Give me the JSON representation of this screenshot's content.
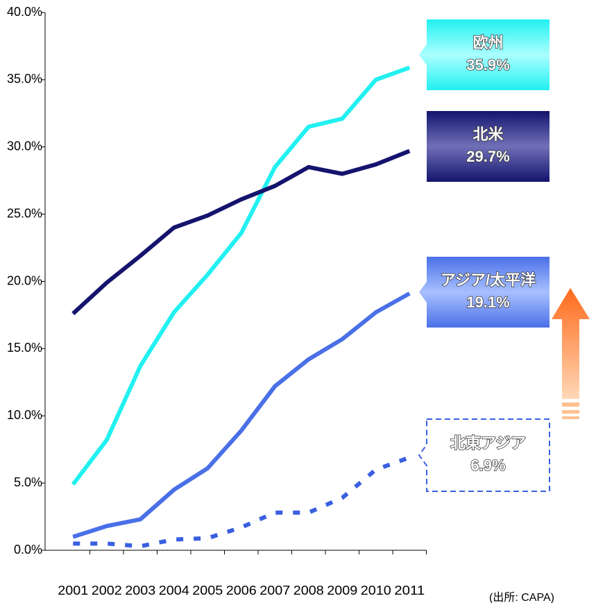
{
  "chart_data": {
    "type": "line",
    "categories": [
      "2001",
      "2002",
      "2003",
      "2004",
      "2005",
      "2006",
      "2007",
      "2008",
      "2009",
      "2010",
      "2011"
    ],
    "series": [
      {
        "name": "欧州",
        "color": "#22f0f0",
        "line_style": "solid",
        "values": [
          4.9,
          8.2,
          13.7,
          17.7,
          20.5,
          23.6,
          28.5,
          31.5,
          32.1,
          35.0,
          35.9
        ],
        "value_labels": [
          null,
          null,
          null,
          null,
          null,
          null,
          null,
          null,
          null,
          null,
          "35.9%"
        ]
      },
      {
        "name": "北米",
        "color": "#14146e",
        "line_style": "solid",
        "values": [
          17.6,
          19.9,
          21.9,
          24.0,
          24.9,
          26.1,
          27.1,
          28.5,
          28.0,
          28.7,
          29.7
        ],
        "value_labels": [
          null,
          null,
          null,
          null,
          null,
          null,
          null,
          null,
          null,
          null,
          "29.7%"
        ]
      },
      {
        "name": "アジア/太平洋",
        "color": "#4a70e8",
        "line_style": "solid",
        "values": [
          1.0,
          1.8,
          2.3,
          4.5,
          6.1,
          8.9,
          12.2,
          14.2,
          15.7,
          17.7,
          19.1
        ],
        "value_labels": [
          null,
          null,
          null,
          null,
          null,
          null,
          null,
          null,
          null,
          null,
          "19.1%"
        ]
      },
      {
        "name": "北東アジア",
        "color": "#3a5fe0",
        "line_style": "dotted",
        "values": [
          0.5,
          0.5,
          0.3,
          0.8,
          0.9,
          1.7,
          2.8,
          2.8,
          3.9,
          6.0,
          6.9
        ],
        "value_labels": [
          null,
          null,
          null,
          null,
          null,
          null,
          null,
          null,
          null,
          null,
          "6.9%"
        ]
      }
    ],
    "ylim": [
      0,
      40
    ],
    "yticks": [
      {
        "value": 0,
        "label": "0.0%"
      },
      {
        "value": 5,
        "label": "5.0%"
      },
      {
        "value": 10,
        "label": "10.0%"
      },
      {
        "value": 15,
        "label": "15.0%"
      },
      {
        "value": 20,
        "label": "20.0%"
      },
      {
        "value": 25,
        "label": "25.0%"
      },
      {
        "value": 30,
        "label": "30.0%"
      },
      {
        "value": 35,
        "label": "35.0%"
      },
      {
        "value": 40,
        "label": "40.0%"
      }
    ],
    "grid": false,
    "source": "(出所: CAPA)"
  }
}
